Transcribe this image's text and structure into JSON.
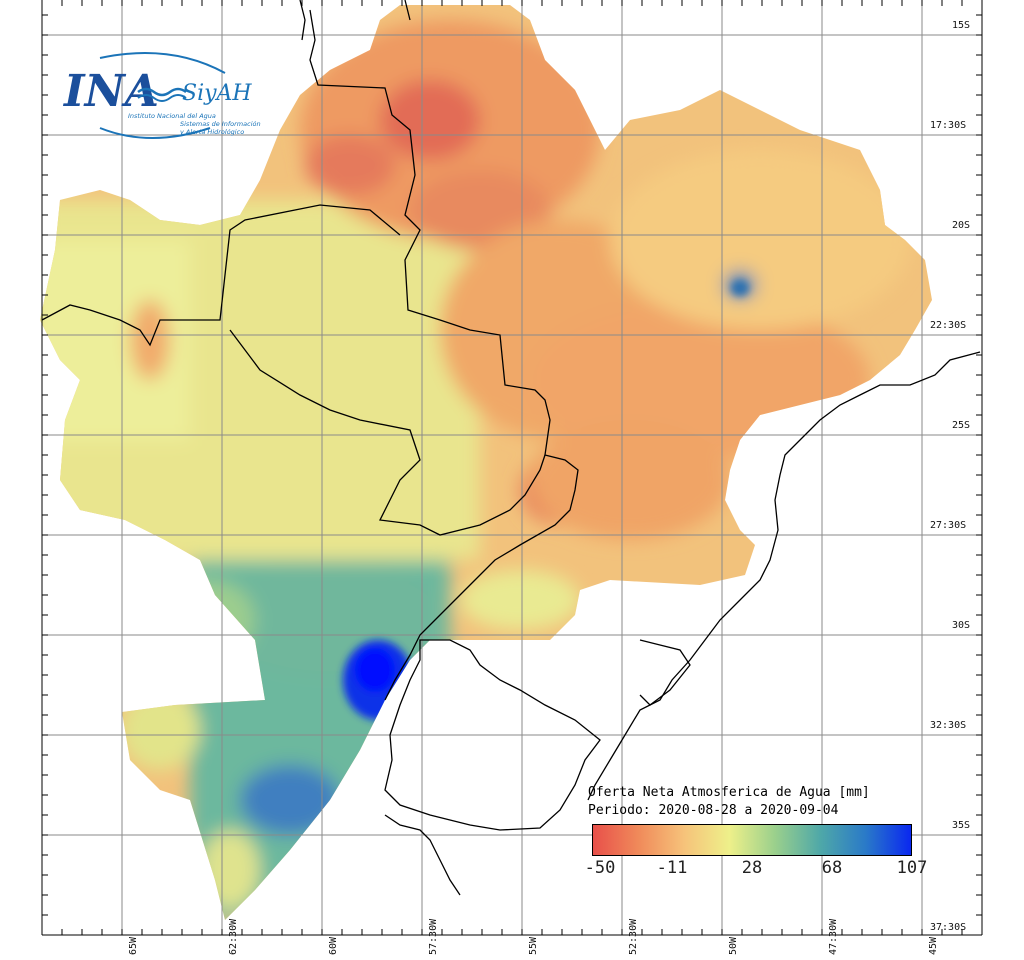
{
  "logo": {
    "main_text": "INA",
    "secondary_text": "SiyAH",
    "subtitle": "Instituto Nacional del Agua",
    "tagline_1": "Sistemas de Información",
    "tagline_2": "y Alerta Hidrológico"
  },
  "legend": {
    "title_line_1": "Oferta Neta Atmosferica de Agua [mm]",
    "title_line_2": "Periodo: 2020-08-28 a 2020-09-04",
    "ticks": [
      "-50",
      "-11",
      "28",
      "68",
      "107"
    ],
    "gradient_colors": [
      "#e8504a",
      "#f08a5a",
      "#f6c27a",
      "#eef08a",
      "#9bd08c",
      "#4fa8a8",
      "#2a7ac8",
      "#0a28f0"
    ]
  },
  "axes": {
    "lat_labels": [
      "15S",
      "17:30S",
      "20S",
      "22:30S",
      "25S",
      "27:30S",
      "30S",
      "32:30S",
      "35S",
      "37:30S"
    ],
    "lon_labels": [
      "65W",
      "62:30W",
      "60W",
      "57:30W",
      "55W",
      "52:30W",
      "50W",
      "47:30W",
      "45W"
    ]
  },
  "colors": {
    "negative": "#e8604e",
    "dry": "#f3a56a",
    "neutral": "#eeeb8e",
    "wet": "#5fb0a0",
    "very_wet": "#0a1ef0"
  }
}
